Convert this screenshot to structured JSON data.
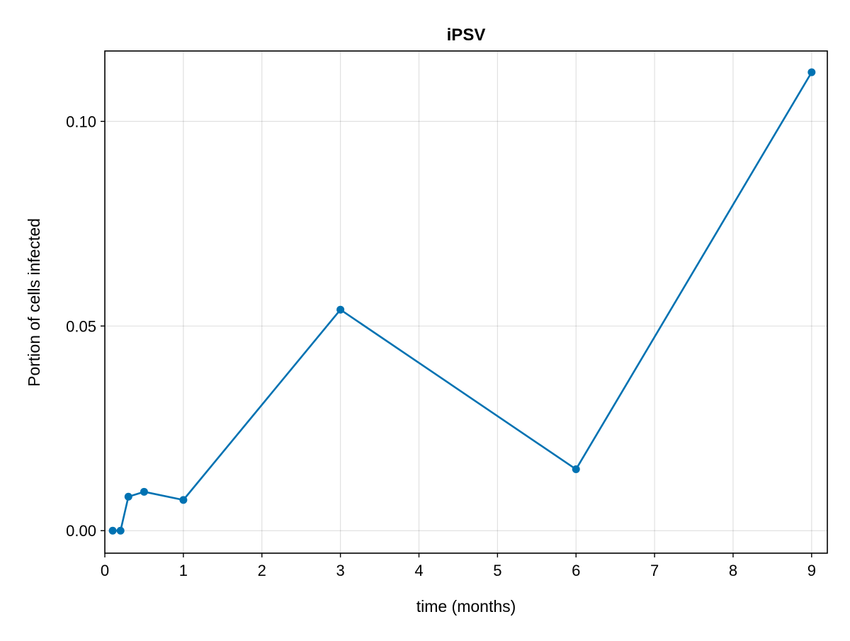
{
  "chart_data": {
    "type": "line",
    "title": "iPSV",
    "xlabel": "time (months)",
    "ylabel": "Portion of cells infected",
    "xlim": [
      0,
      9.2
    ],
    "ylim": [
      -0.0055,
      0.1172
    ],
    "xticks": [
      0,
      1,
      2,
      3,
      4,
      5,
      6,
      7,
      8,
      9
    ],
    "xtick_labels": [
      "0",
      "1",
      "2",
      "3",
      "4",
      "5",
      "6",
      "7",
      "8",
      "9"
    ],
    "yticks": [
      0.0,
      0.05,
      0.1
    ],
    "ytick_labels": [
      "0.00",
      "0.05",
      "0.10"
    ],
    "grid": true,
    "series": [
      {
        "color": "#0072b2",
        "marker": "circle",
        "x": [
          0.1,
          0.2,
          0.3,
          0.5,
          1,
          3,
          6,
          9
        ],
        "y": [
          0.0,
          0.0,
          0.0083,
          0.0095,
          0.0075,
          0.054,
          0.015,
          0.112
        ]
      }
    ]
  }
}
